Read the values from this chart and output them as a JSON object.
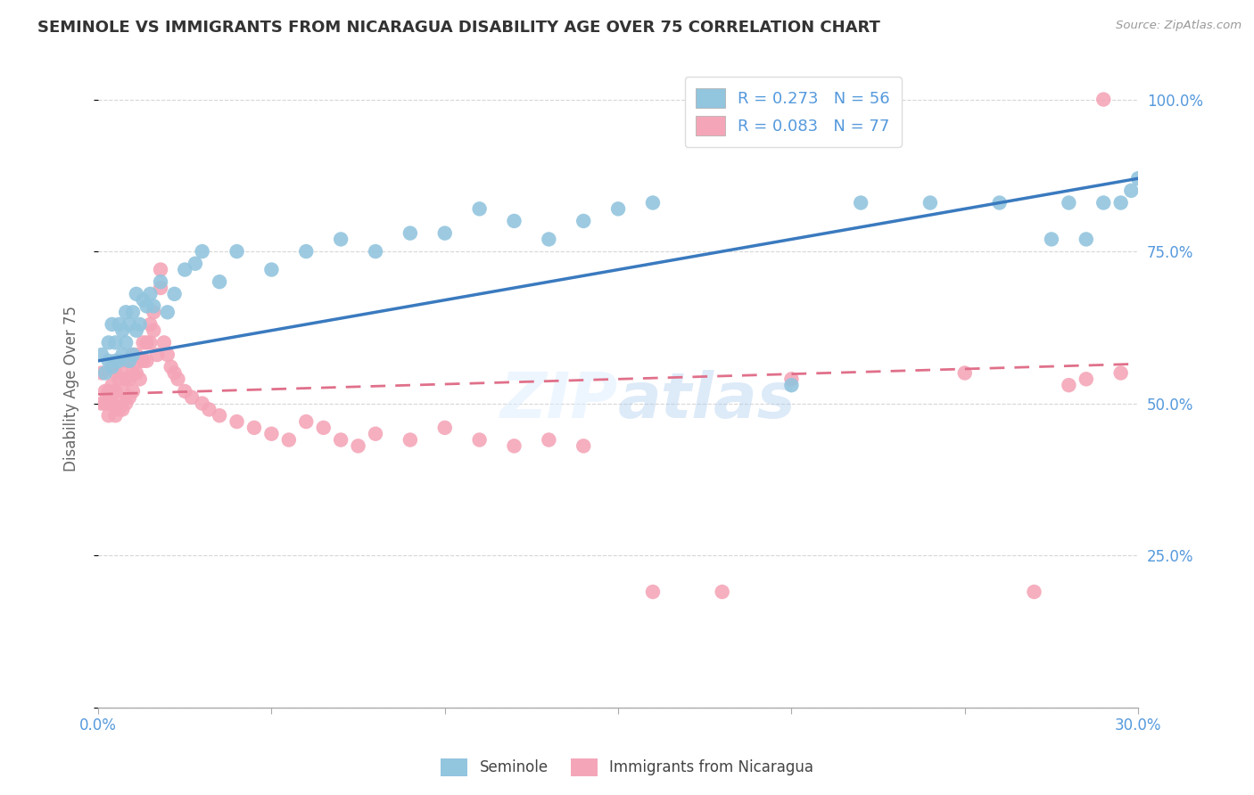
{
  "title": "SEMINOLE VS IMMIGRANTS FROM NICARAGUA DISABILITY AGE OVER 75 CORRELATION CHART",
  "source": "Source: ZipAtlas.com",
  "ylabel": "Disability Age Over 75",
  "legend_label_blue": "Seminole",
  "legend_label_pink": "Immigrants from Nicaragua",
  "blue_color": "#92c5de",
  "pink_color": "#f4a6b8",
  "blue_line_color": "#3a7abf",
  "pink_line_color": "#e0708a",
  "axis_color": "#5599dd",
  "grid_color": "#cccccc",
  "xlim": [
    0.0,
    0.3
  ],
  "ylim": [
    0.0,
    1.05
  ],
  "blue_trend": [
    0.57,
    0.87
  ],
  "pink_trend": [
    0.515,
    0.565
  ],
  "seminole_x": [
    0.001,
    0.002,
    0.003,
    0.003,
    0.004,
    0.004,
    0.005,
    0.005,
    0.006,
    0.006,
    0.007,
    0.007,
    0.008,
    0.008,
    0.009,
    0.009,
    0.01,
    0.01,
    0.011,
    0.011,
    0.012,
    0.013,
    0.014,
    0.015,
    0.016,
    0.018,
    0.02,
    0.022,
    0.025,
    0.028,
    0.03,
    0.035,
    0.04,
    0.05,
    0.06,
    0.07,
    0.08,
    0.09,
    0.1,
    0.11,
    0.12,
    0.13,
    0.14,
    0.15,
    0.16,
    0.2,
    0.22,
    0.24,
    0.26,
    0.275,
    0.28,
    0.285,
    0.29,
    0.295,
    0.298,
    0.3
  ],
  "seminole_y": [
    0.58,
    0.55,
    0.57,
    0.6,
    0.56,
    0.63,
    0.57,
    0.6,
    0.63,
    0.57,
    0.62,
    0.58,
    0.65,
    0.6,
    0.63,
    0.57,
    0.65,
    0.58,
    0.68,
    0.62,
    0.63,
    0.67,
    0.66,
    0.68,
    0.66,
    0.7,
    0.65,
    0.68,
    0.72,
    0.73,
    0.75,
    0.7,
    0.75,
    0.72,
    0.75,
    0.77,
    0.75,
    0.78,
    0.78,
    0.82,
    0.8,
    0.77,
    0.8,
    0.82,
    0.83,
    0.53,
    0.83,
    0.83,
    0.83,
    0.77,
    0.83,
    0.77,
    0.83,
    0.83,
    0.85,
    0.87
  ],
  "nicaragua_x": [
    0.001,
    0.001,
    0.002,
    0.002,
    0.003,
    0.003,
    0.003,
    0.004,
    0.004,
    0.004,
    0.005,
    0.005,
    0.005,
    0.006,
    0.006,
    0.006,
    0.007,
    0.007,
    0.007,
    0.008,
    0.008,
    0.008,
    0.009,
    0.009,
    0.009,
    0.01,
    0.01,
    0.01,
    0.011,
    0.011,
    0.012,
    0.012,
    0.013,
    0.013,
    0.014,
    0.014,
    0.015,
    0.015,
    0.016,
    0.016,
    0.017,
    0.018,
    0.018,
    0.019,
    0.02,
    0.021,
    0.022,
    0.023,
    0.025,
    0.027,
    0.03,
    0.032,
    0.035,
    0.04,
    0.045,
    0.05,
    0.055,
    0.06,
    0.065,
    0.07,
    0.075,
    0.08,
    0.09,
    0.1,
    0.11,
    0.12,
    0.13,
    0.14,
    0.16,
    0.18,
    0.2,
    0.25,
    0.27,
    0.28,
    0.285,
    0.29,
    0.295
  ],
  "nicaragua_y": [
    0.55,
    0.5,
    0.52,
    0.5,
    0.52,
    0.5,
    0.48,
    0.56,
    0.53,
    0.5,
    0.55,
    0.52,
    0.48,
    0.54,
    0.51,
    0.49,
    0.55,
    0.52,
    0.49,
    0.57,
    0.54,
    0.5,
    0.57,
    0.54,
    0.51,
    0.58,
    0.55,
    0.52,
    0.58,
    0.55,
    0.57,
    0.54,
    0.6,
    0.57,
    0.6,
    0.57,
    0.63,
    0.6,
    0.65,
    0.62,
    0.58,
    0.72,
    0.69,
    0.6,
    0.58,
    0.56,
    0.55,
    0.54,
    0.52,
    0.51,
    0.5,
    0.49,
    0.48,
    0.47,
    0.46,
    0.45,
    0.44,
    0.47,
    0.46,
    0.44,
    0.43,
    0.45,
    0.44,
    0.46,
    0.44,
    0.43,
    0.44,
    0.43,
    0.19,
    0.19,
    0.54,
    0.55,
    0.19,
    0.53,
    0.54,
    1.0,
    0.55
  ],
  "xtick_positions": [
    0.0,
    0.05,
    0.1,
    0.15,
    0.2,
    0.25,
    0.3
  ],
  "ytick_positions": [
    0.0,
    0.25,
    0.5,
    0.75,
    1.0
  ],
  "ytick_labels": [
    "",
    "25.0%",
    "50.0%",
    "75.0%",
    "100.0%"
  ]
}
